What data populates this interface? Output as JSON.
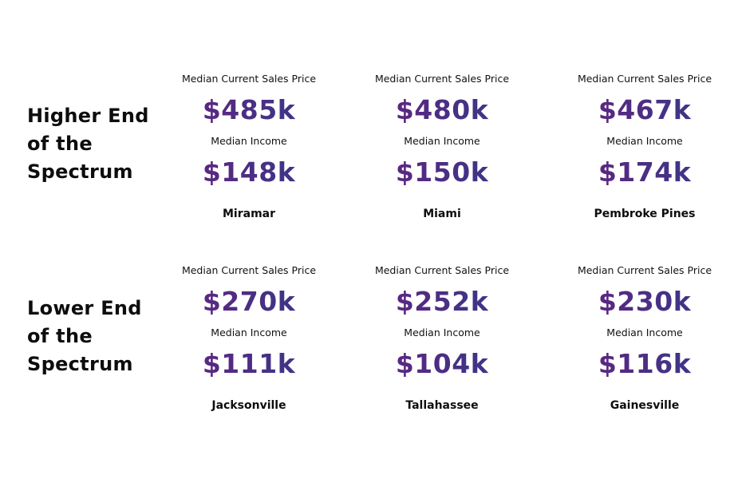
{
  "labels": {
    "price": "Median Current Sales Price",
    "income": "Median Income"
  },
  "higher": {
    "heading": [
      "Higher End",
      "of the",
      "Spectrum"
    ],
    "cities": [
      {
        "name": "Miramar",
        "price": "$485k",
        "income": "$148k"
      },
      {
        "name": "Miami",
        "price": "$480k",
        "income": "$150k"
      },
      {
        "name": "Pembroke Pines",
        "price": "$467k",
        "income": "$174k"
      }
    ]
  },
  "lower": {
    "heading": [
      "Lower End",
      "of the",
      "Spectrum"
    ],
    "cities": [
      {
        "name": "Jacksonville",
        "price": "$270k",
        "income": "$111k"
      },
      {
        "name": "Tallahassee",
        "price": "$252k",
        "income": "$104k"
      },
      {
        "name": "Gainesville",
        "price": "$230k",
        "income": "$116k"
      }
    ]
  },
  "colors": {
    "value_gradient_start": "#6b1f7e",
    "value_gradient_end": "#2d3d8a"
  }
}
